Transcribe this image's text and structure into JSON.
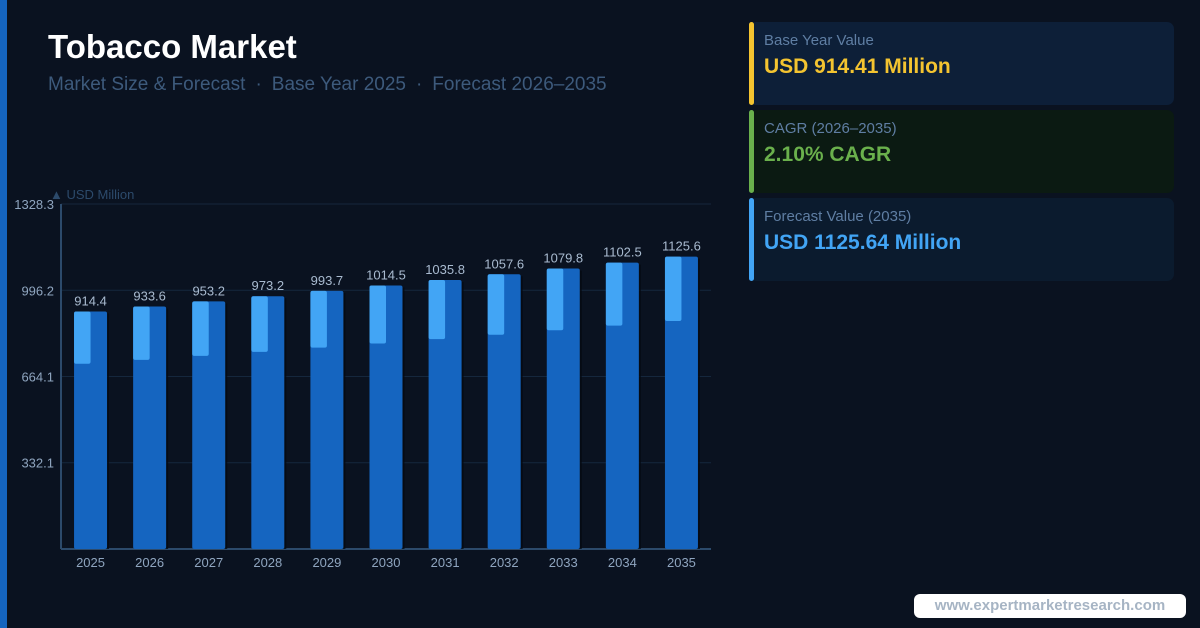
{
  "header": {
    "title": "Tobacco Market",
    "subtitle_parts": [
      "Market Size & Forecast",
      "Base Year 2025",
      "Forecast 2026–2035"
    ],
    "separator": "·"
  },
  "cards": [
    {
      "label": "Base Year Value",
      "value": "USD 914.41 Million",
      "color": "#f4c430"
    },
    {
      "label": "CAGR (2026–2035)",
      "value": "2.10% CAGR",
      "color": "#6ab04c"
    },
    {
      "label": "Forecast Value (2035)",
      "value": "USD 1125.64 Million",
      "color": "#42a5f5"
    }
  ],
  "chart_data": {
    "type": "bar",
    "ylabel": "▲ USD Million",
    "ylim": [
      0,
      1328.3
    ],
    "yticks": [
      "1328.3",
      "996.2",
      "664.1",
      "332.1"
    ],
    "categories": [
      "2025",
      "2026",
      "2027",
      "2028",
      "2029",
      "2030",
      "2031",
      "2032",
      "2033",
      "2034",
      "2035"
    ],
    "values": [
      914.4,
      933.6,
      953.2,
      973.2,
      993.7,
      1014.5,
      1035.8,
      1057.6,
      1079.8,
      1102.5,
      1125.6
    ],
    "value_labels": [
      "914.4",
      "933.6",
      "953.2",
      "973.2",
      "993.7",
      "1014.5",
      "1035.8",
      "1057.6",
      "1079.8",
      "1102.5",
      "1125.6"
    ],
    "grid": true,
    "colors": {
      "bar": "#1565c0",
      "bar_highlight": "#42a5f5",
      "grid": "#15273d",
      "axis": "#2c4a6b",
      "tick_text": "#8fa5bf",
      "value_text": "#a9bbd0"
    }
  },
  "watermark": "www.expertmarketresearch.com"
}
